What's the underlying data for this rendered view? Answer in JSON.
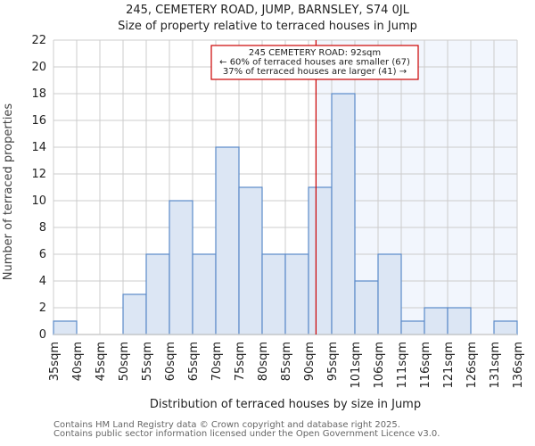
{
  "chart_data": {
    "type": "bar",
    "title": "245, CEMETERY ROAD, JUMP, BARNSLEY, S74 0JL",
    "subtitle": "Size of property relative to terraced houses in Jump",
    "xlabel": "Distribution of terraced houses by size in Jump",
    "ylabel": "Number of terraced properties",
    "categories": [
      "35sqm",
      "40sqm",
      "45sqm",
      "50sqm",
      "55sqm",
      "60sqm",
      "65sqm",
      "70sqm",
      "75sqm",
      "80sqm",
      "85sqm",
      "90sqm",
      "95sqm",
      "101sqm",
      "106sqm",
      "111sqm",
      "116sqm",
      "121sqm",
      "126sqm",
      "131sqm",
      "136sqm"
    ],
    "values": [
      1,
      0,
      0,
      3,
      6,
      10,
      6,
      14,
      11,
      6,
      6,
      11,
      18,
      4,
      6,
      1,
      2,
      2,
      0,
      1
    ],
    "yticks": [
      0,
      2,
      4,
      6,
      8,
      10,
      12,
      14,
      16,
      18,
      20,
      22
    ],
    "ylim": [
      0,
      22
    ],
    "grid": true,
    "marker": {
      "value_sqm": 92,
      "color": "#cc0000",
      "annotation": [
        "245 CEMETERY ROAD: 92sqm",
        "← 60% of terraced houses are smaller (67)",
        "37% of terraced houses are larger (41) →"
      ]
    },
    "colors": {
      "bar_fill": "#dce6f4",
      "bar_edge": "#5b8ac9",
      "highlight_bg": "#f2f6fd",
      "grid": "#cccccc"
    }
  },
  "footer": {
    "line1": "Contains HM Land Registry data © Crown copyright and database right 2025.",
    "line2": "Contains public sector information licensed under the Open Government Licence v3.0."
  }
}
